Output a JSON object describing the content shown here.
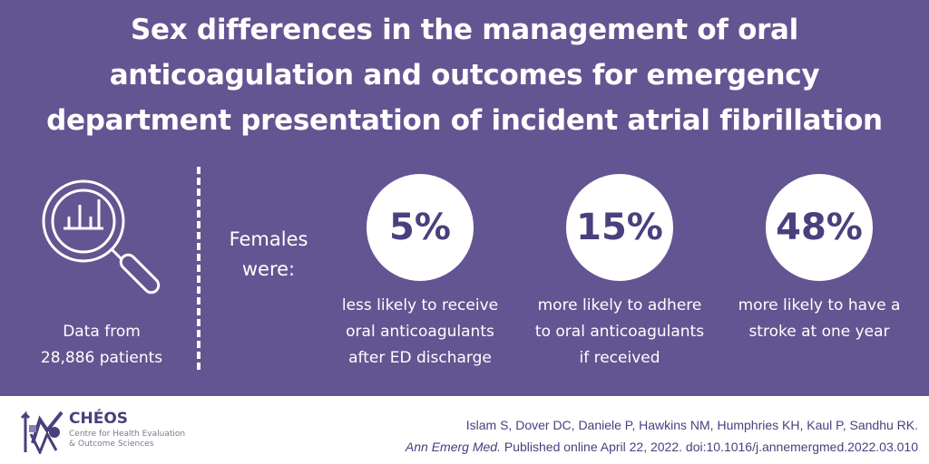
{
  "title_lines": [
    "Sex differences in the management of oral",
    "anticoagulation and outcomes for emergency",
    "department presentation of incident atrial fibrillation"
  ],
  "data_source": {
    "line1": "Data from",
    "line2": "28,886 patients"
  },
  "females_label": {
    "line1": "Females",
    "line2": "were:"
  },
  "stats": [
    {
      "value": "5%",
      "lines": [
        "less likely to receive",
        "oral anticoagulants",
        "after ED discharge"
      ]
    },
    {
      "value": "15%",
      "lines": [
        "more likely to adhere",
        "to oral anticoagulants",
        "if received"
      ]
    },
    {
      "value": "48%",
      "lines": [
        "more likely to have a",
        "stroke at one year"
      ]
    }
  ],
  "logo": {
    "name": "CHÉOS",
    "subtitle_line1": "Centre for Health Evaluation",
    "subtitle_line2": "& Outcome Sciences"
  },
  "citation": {
    "authors": "Islam S, Dover DC, Daniele P, Hawkins NM, Humphries KH, Kaul P, Sandhu RK.",
    "journal": "Ann Emerg Med.",
    "details": " Published online April 22, 2022. doi:10.1016/j.annemergmed.2022.03.010"
  },
  "colors": {
    "background": "#635591",
    "accent": "#4b3f7d"
  }
}
